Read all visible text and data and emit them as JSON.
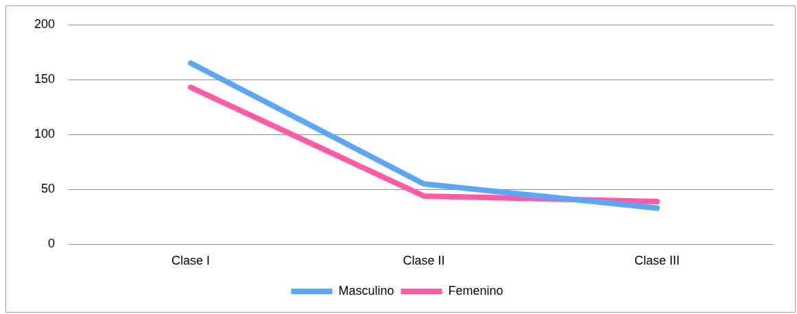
{
  "chart_data": {
    "type": "line",
    "categories": [
      "Clase I",
      "Clase II",
      "Clase III"
    ],
    "series": [
      {
        "name": "Masculino",
        "color": "#5ba7f7",
        "values": [
          165,
          55,
          33
        ]
      },
      {
        "name": "Femenino",
        "color": "#ff5aa5",
        "values": [
          143,
          44,
          39
        ]
      }
    ],
    "ylim": [
      0,
      200
    ],
    "yticks": [
      0,
      50,
      100,
      150,
      200
    ],
    "grid": "y",
    "legend": "bottom",
    "marker": "none",
    "line_style": "solid"
  }
}
